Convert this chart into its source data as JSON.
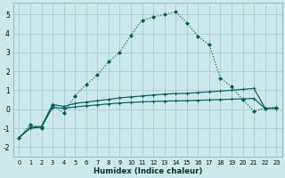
{
  "xlabel": "Humidex (Indice chaleur)",
  "background_color": "#cce8e8",
  "grid_color": "#aacccc",
  "line_color": "#006060",
  "x_values": [
    0,
    1,
    2,
    3,
    4,
    5,
    6,
    7,
    8,
    9,
    10,
    11,
    12,
    13,
    14,
    15,
    16,
    17,
    18,
    19,
    20,
    21,
    22,
    23
  ],
  "line_dotted": [
    -1.5,
    -0.8,
    -1.0,
    0.2,
    -0.2,
    0.7,
    1.3,
    1.8,
    2.5,
    3.0,
    3.9,
    4.7,
    4.85,
    5.0,
    5.15,
    4.55,
    3.85,
    3.4,
    1.65,
    1.2,
    0.5,
    -0.1,
    0.05,
    0.1
  ],
  "line_upper": [
    -1.5,
    -0.95,
    -0.9,
    0.25,
    0.15,
    0.3,
    0.38,
    0.45,
    0.52,
    0.6,
    0.65,
    0.7,
    0.75,
    0.8,
    0.82,
    0.84,
    0.88,
    0.92,
    0.96,
    1.0,
    1.05,
    1.1,
    0.05,
    0.07
  ],
  "line_lower": [
    -1.5,
    -1.0,
    -0.95,
    0.1,
    0.05,
    0.12,
    0.18,
    0.23,
    0.28,
    0.33,
    0.36,
    0.39,
    0.41,
    0.43,
    0.44,
    0.45,
    0.47,
    0.49,
    0.51,
    0.53,
    0.55,
    0.57,
    0.03,
    0.05
  ],
  "ylim": [
    -2.5,
    5.6
  ],
  "xlim": [
    -0.5,
    23.5
  ],
  "yticks": [
    -2,
    -1,
    0,
    1,
    2,
    3,
    4,
    5
  ],
  "xticks": [
    0,
    1,
    2,
    3,
    4,
    5,
    6,
    7,
    8,
    9,
    10,
    11,
    12,
    13,
    14,
    15,
    16,
    17,
    18,
    19,
    20,
    21,
    22,
    23
  ]
}
